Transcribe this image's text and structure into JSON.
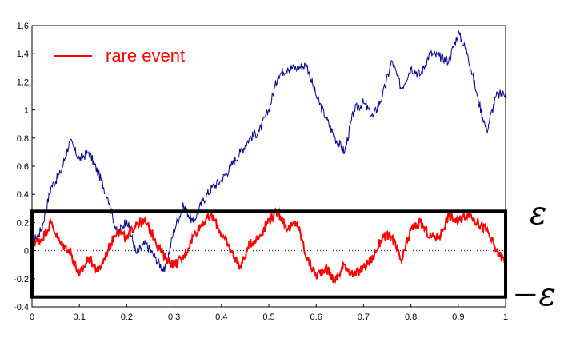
{
  "chart_data": {
    "type": "line",
    "title": "",
    "xlabel": "",
    "ylabel": "",
    "xlim": [
      0,
      1
    ],
    "ylim": [
      -0.4,
      1.6
    ],
    "grid": false,
    "x_ticks": [
      "0",
      "0.1",
      "0.2",
      "0.3",
      "0.4",
      "0.5",
      "0.6",
      "0.7",
      "0.8",
      "0.9",
      "1"
    ],
    "y_ticks": [
      "-0.4",
      "-0.2",
      "0",
      "0.2",
      "0.4",
      "0.6",
      "0.8",
      "1",
      "1.2",
      "1.4",
      "1.6"
    ],
    "zero_line": {
      "y": 0,
      "style": "dotted",
      "color": "#000000"
    },
    "legend": {
      "position": "top-left"
    },
    "series": [
      {
        "name": "",
        "color": "#00008b",
        "x": [
          0,
          0.02,
          0.04,
          0.06,
          0.08,
          0.1,
          0.12,
          0.14,
          0.16,
          0.18,
          0.2,
          0.22,
          0.24,
          0.26,
          0.28,
          0.3,
          0.32,
          0.34,
          0.36,
          0.38,
          0.4,
          0.42,
          0.44,
          0.46,
          0.48,
          0.5,
          0.52,
          0.54,
          0.56,
          0.58,
          0.6,
          0.62,
          0.64,
          0.66,
          0.68,
          0.7,
          0.72,
          0.74,
          0.76,
          0.78,
          0.8,
          0.82,
          0.84,
          0.86,
          0.88,
          0.9,
          0.92,
          0.94,
          0.96,
          0.98,
          1.0
        ],
        "values": [
          0.05,
          0.15,
          0.45,
          0.55,
          0.78,
          0.65,
          0.7,
          0.55,
          0.38,
          0.12,
          0.22,
          -0.02,
          0.05,
          -0.05,
          -0.15,
          0.15,
          0.32,
          0.2,
          0.35,
          0.45,
          0.5,
          0.6,
          0.7,
          0.8,
          0.85,
          1.0,
          1.25,
          1.3,
          1.3,
          1.32,
          1.1,
          0.95,
          0.8,
          0.7,
          1.0,
          1.05,
          0.95,
          1.1,
          1.35,
          1.15,
          1.3,
          1.25,
          1.4,
          1.38,
          1.35,
          1.55,
          1.4,
          1.1,
          0.85,
          1.1,
          1.12
        ]
      },
      {
        "name": "rare event",
        "color": "#ff0000",
        "x": [
          0,
          0.02,
          0.04,
          0.06,
          0.08,
          0.1,
          0.12,
          0.14,
          0.16,
          0.18,
          0.2,
          0.22,
          0.24,
          0.26,
          0.28,
          0.3,
          0.32,
          0.34,
          0.36,
          0.38,
          0.4,
          0.42,
          0.44,
          0.46,
          0.48,
          0.5,
          0.52,
          0.54,
          0.56,
          0.58,
          0.6,
          0.62,
          0.64,
          0.66,
          0.68,
          0.7,
          0.72,
          0.74,
          0.76,
          0.78,
          0.8,
          0.82,
          0.84,
          0.86,
          0.88,
          0.9,
          0.92,
          0.94,
          0.96,
          0.98,
          1.0
        ],
        "values": [
          0.05,
          0.08,
          0.2,
          0.05,
          0.0,
          -0.18,
          -0.05,
          -0.15,
          0.0,
          0.15,
          0.08,
          0.2,
          0.2,
          0.08,
          -0.05,
          -0.1,
          -0.05,
          0.1,
          0.2,
          0.25,
          0.12,
          0.0,
          -0.12,
          0.05,
          0.1,
          0.22,
          0.28,
          0.15,
          0.2,
          -0.05,
          -0.18,
          -0.12,
          -0.22,
          -0.1,
          -0.18,
          -0.12,
          -0.05,
          0.1,
          0.1,
          -0.08,
          0.15,
          0.2,
          0.1,
          0.1,
          0.25,
          0.2,
          0.27,
          0.2,
          0.15,
          0.0,
          -0.08
        ]
      }
    ],
    "annotations": [
      {
        "text": "ε",
        "at_y": 0.28
      },
      {
        "text": "−ε",
        "at_y": -0.33
      }
    ],
    "band": {
      "y_min": -0.33,
      "y_max": 0.28,
      "x_min": 0,
      "x_max": 1,
      "color": "#000000"
    }
  }
}
